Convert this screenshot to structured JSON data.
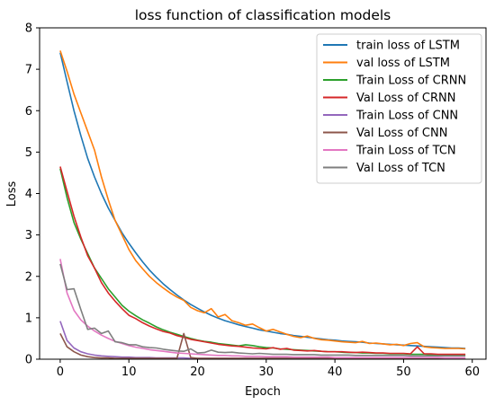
{
  "chart_data": {
    "type": "line",
    "title": "loss function of classification models",
    "xlabel": "Epoch",
    "ylabel": "Loss",
    "xlim": [
      -3.0,
      62.0
    ],
    "ylim": [
      0,
      8
    ],
    "xticks": [
      0,
      10,
      20,
      30,
      40,
      50,
      60
    ],
    "yticks": [
      0,
      1,
      2,
      3,
      4,
      5,
      6,
      7,
      8
    ],
    "grid": false,
    "legend_position": "upper right",
    "series": [
      {
        "name": "train loss of LSTM",
        "color": "#1f77b4",
        "x": [
          0,
          1,
          2,
          3,
          4,
          5,
          6,
          7,
          8,
          9,
          10,
          11,
          12,
          13,
          14,
          15,
          16,
          17,
          18,
          19,
          20,
          21,
          22,
          23,
          24,
          25,
          26,
          27,
          28,
          29,
          30,
          31,
          32,
          33,
          34,
          35,
          36,
          37,
          38,
          39,
          40,
          41,
          42,
          43,
          44,
          45,
          46,
          47,
          48,
          49,
          50,
          51,
          52,
          53,
          54,
          55,
          56,
          57,
          58,
          59
        ],
        "y": [
          7.4,
          6.7,
          6.0,
          5.4,
          4.85,
          4.4,
          4.0,
          3.65,
          3.35,
          3.05,
          2.8,
          2.57,
          2.35,
          2.15,
          1.98,
          1.82,
          1.68,
          1.55,
          1.43,
          1.32,
          1.23,
          1.14,
          1.06,
          0.99,
          0.93,
          0.88,
          0.83,
          0.79,
          0.75,
          0.71,
          0.68,
          0.65,
          0.62,
          0.6,
          0.57,
          0.55,
          0.53,
          0.51,
          0.49,
          0.47,
          0.46,
          0.44,
          0.43,
          0.42,
          0.41,
          0.39,
          0.38,
          0.37,
          0.36,
          0.35,
          0.34,
          0.33,
          0.32,
          0.31,
          0.3,
          0.29,
          0.28,
          0.27,
          0.27,
          0.26
        ]
      },
      {
        "name": "val loss of LSTM",
        "color": "#ff7f0e",
        "x": [
          0,
          1,
          2,
          3,
          4,
          5,
          6,
          7,
          8,
          9,
          10,
          11,
          12,
          13,
          14,
          15,
          16,
          17,
          18,
          19,
          20,
          21,
          22,
          23,
          24,
          25,
          26,
          27,
          28,
          29,
          30,
          31,
          32,
          33,
          34,
          35,
          36,
          37,
          38,
          39,
          40,
          41,
          42,
          43,
          44,
          45,
          46,
          47,
          48,
          49,
          50,
          51,
          52,
          53,
          54,
          55,
          56,
          57,
          58,
          59
        ],
        "y": [
          7.45,
          6.95,
          6.4,
          5.95,
          5.5,
          5.05,
          4.4,
          3.85,
          3.35,
          3.0,
          2.65,
          2.38,
          2.18,
          2.0,
          1.85,
          1.72,
          1.6,
          1.5,
          1.42,
          1.25,
          1.17,
          1.12,
          1.22,
          1.02,
          1.08,
          0.93,
          0.88,
          0.82,
          0.85,
          0.76,
          0.68,
          0.72,
          0.66,
          0.6,
          0.55,
          0.52,
          0.56,
          0.5,
          0.47,
          0.46,
          0.44,
          0.42,
          0.41,
          0.4,
          0.43,
          0.38,
          0.39,
          0.37,
          0.35,
          0.36,
          0.33,
          0.38,
          0.4,
          0.3,
          0.28,
          0.27,
          0.26,
          0.26,
          0.26,
          0.25
        ]
      },
      {
        "name": "Train Loss of CRNN",
        "color": "#2ca02c",
        "x": [
          0,
          1,
          2,
          3,
          4,
          5,
          6,
          7,
          8,
          9,
          10,
          11,
          12,
          13,
          14,
          15,
          16,
          17,
          18,
          19,
          20,
          21,
          22,
          23,
          24,
          25,
          26,
          27,
          28,
          29,
          30,
          31,
          32,
          33,
          34,
          35,
          36,
          37,
          38,
          39,
          40,
          41,
          42,
          43,
          44,
          45,
          46,
          47,
          48,
          49,
          50,
          51,
          52,
          53,
          54,
          55,
          56,
          57,
          58,
          59
        ],
        "y": [
          4.6,
          3.9,
          3.3,
          2.9,
          2.55,
          2.2,
          1.95,
          1.7,
          1.5,
          1.3,
          1.16,
          1.05,
          0.95,
          0.87,
          0.78,
          0.71,
          0.65,
          0.6,
          0.55,
          0.5,
          0.46,
          0.43,
          0.41,
          0.38,
          0.36,
          0.34,
          0.32,
          0.35,
          0.33,
          0.3,
          0.28,
          0.27,
          0.25,
          0.24,
          0.23,
          0.22,
          0.21,
          0.2,
          0.19,
          0.18,
          0.18,
          0.17,
          0.16,
          0.16,
          0.15,
          0.15,
          0.14,
          0.14,
          0.13,
          0.13,
          0.13,
          0.12,
          0.12,
          0.12,
          0.11,
          0.11,
          0.11,
          0.11,
          0.1,
          0.1
        ]
      },
      {
        "name": "Val Loss of CRNN",
        "color": "#d62728",
        "x": [
          0,
          1,
          2,
          3,
          4,
          5,
          6,
          7,
          8,
          9,
          10,
          11,
          12,
          13,
          14,
          15,
          16,
          17,
          18,
          19,
          20,
          21,
          22,
          23,
          24,
          25,
          26,
          27,
          28,
          29,
          30,
          31,
          32,
          33,
          34,
          35,
          36,
          37,
          38,
          39,
          40,
          41,
          42,
          43,
          44,
          45,
          46,
          47,
          48,
          49,
          50,
          51,
          52,
          53,
          54,
          55,
          56,
          57,
          58,
          59
        ],
        "y": [
          4.65,
          4.05,
          3.45,
          2.95,
          2.5,
          2.2,
          1.85,
          1.6,
          1.4,
          1.22,
          1.06,
          0.98,
          0.88,
          0.8,
          0.73,
          0.67,
          0.63,
          0.57,
          0.53,
          0.48,
          0.45,
          0.42,
          0.39,
          0.36,
          0.34,
          0.32,
          0.31,
          0.29,
          0.27,
          0.26,
          0.25,
          0.28,
          0.24,
          0.26,
          0.22,
          0.21,
          0.2,
          0.21,
          0.19,
          0.18,
          0.18,
          0.18,
          0.17,
          0.16,
          0.17,
          0.16,
          0.15,
          0.15,
          0.14,
          0.14,
          0.14,
          0.13,
          0.3,
          0.13,
          0.13,
          0.12,
          0.12,
          0.12,
          0.12,
          0.12
        ]
      },
      {
        "name": "Train Loss of CNN",
        "color": "#9467bd",
        "x": [
          0,
          1,
          2,
          3,
          4,
          5,
          6,
          7,
          8,
          9,
          10,
          11,
          12,
          13,
          14,
          15,
          16,
          17,
          18,
          19,
          20,
          21,
          22,
          23,
          24,
          25,
          26,
          27,
          28,
          29,
          30,
          31,
          32,
          33,
          34,
          35,
          36,
          37,
          38,
          39,
          40,
          41,
          42,
          43,
          44,
          45,
          46,
          47,
          48,
          49,
          50,
          51,
          52,
          53,
          54,
          55,
          56,
          57,
          58,
          59
        ],
        "y": [
          0.92,
          0.45,
          0.27,
          0.18,
          0.13,
          0.1,
          0.08,
          0.07,
          0.06,
          0.05,
          0.05,
          0.04,
          0.04,
          0.04,
          0.03,
          0.03,
          0.03,
          0.03,
          0.03,
          0.02,
          0.02,
          0.02,
          0.02,
          0.02,
          0.02,
          0.02,
          0.02,
          0.02,
          0.02,
          0.02,
          0.02,
          0.02,
          0.02,
          0.02,
          0.02,
          0.02,
          0.02,
          0.02,
          0.02,
          0.02,
          0.02,
          0.02,
          0.02,
          0.02,
          0.02,
          0.02,
          0.02,
          0.02,
          0.02,
          0.02,
          0.02,
          0.02,
          0.02,
          0.02,
          0.02,
          0.02,
          0.02,
          0.02,
          0.02,
          0.02
        ]
      },
      {
        "name": "Val Loss of CNN",
        "color": "#8c564b",
        "x": [
          0,
          1,
          2,
          3,
          4,
          5,
          6,
          7,
          8,
          9,
          10,
          11,
          12,
          13,
          14,
          15,
          16,
          17,
          18,
          19,
          20,
          21,
          22,
          23,
          24,
          25,
          26,
          27,
          28,
          29,
          30,
          31,
          32,
          33,
          34,
          35,
          36,
          37,
          38,
          39,
          40,
          41,
          42,
          43,
          44,
          45,
          46,
          47,
          48,
          49,
          50,
          51,
          52,
          53,
          54,
          55,
          56,
          57,
          58,
          59
        ],
        "y": [
          0.62,
          0.3,
          0.18,
          0.1,
          0.06,
          0.04,
          0.03,
          0.03,
          0.02,
          0.02,
          0.02,
          0.02,
          0.02,
          0.02,
          0.02,
          0.02,
          0.02,
          0.02,
          0.62,
          0.04,
          0.02,
          0.02,
          0.02,
          0.02,
          0.02,
          0.02,
          0.02,
          0.02,
          0.02,
          0.02,
          0.02,
          0.02,
          0.02,
          0.02,
          0.02,
          0.02,
          0.02,
          0.02,
          0.02,
          0.02,
          0.02,
          0.02,
          0.02,
          0.02,
          0.02,
          0.02,
          0.02,
          0.02,
          0.02,
          0.02,
          0.02,
          0.02,
          0.02,
          0.02,
          0.02,
          0.02,
          0.02,
          0.02,
          0.02,
          0.02
        ]
      },
      {
        "name": "Train Loss of TCN",
        "color": "#e377c2",
        "x": [
          0,
          1,
          2,
          3,
          4,
          5,
          6,
          7,
          8,
          9,
          10,
          11,
          12,
          13,
          14,
          15,
          16,
          17,
          18,
          19,
          20,
          21,
          22,
          23,
          24,
          25,
          26,
          27,
          28,
          29,
          30,
          31,
          32,
          33,
          34,
          35,
          36,
          37,
          38,
          39,
          40,
          41,
          42,
          43,
          44,
          45,
          46,
          47,
          48,
          49,
          50,
          51,
          52,
          53,
          54,
          55,
          56,
          57,
          58,
          59
        ],
        "y": [
          2.42,
          1.6,
          1.18,
          0.95,
          0.8,
          0.68,
          0.58,
          0.5,
          0.43,
          0.38,
          0.33,
          0.29,
          0.26,
          0.23,
          0.21,
          0.19,
          0.17,
          0.15,
          0.14,
          0.13,
          0.12,
          0.11,
          0.1,
          0.09,
          0.09,
          0.08,
          0.08,
          0.07,
          0.07,
          0.07,
          0.06,
          0.06,
          0.06,
          0.06,
          0.05,
          0.05,
          0.05,
          0.05,
          0.05,
          0.05,
          0.04,
          0.04,
          0.04,
          0.04,
          0.04,
          0.04,
          0.04,
          0.04,
          0.04,
          0.04,
          0.04,
          0.04,
          0.04,
          0.04,
          0.04,
          0.04,
          0.03,
          0.03,
          0.03,
          0.03
        ]
      },
      {
        "name": "Val Loss of TCN",
        "color": "#7f7f7f",
        "x": [
          0,
          1,
          2,
          3,
          4,
          5,
          6,
          7,
          8,
          9,
          10,
          11,
          12,
          13,
          14,
          15,
          16,
          17,
          18,
          19,
          20,
          21,
          22,
          23,
          24,
          25,
          26,
          27,
          28,
          29,
          30,
          31,
          32,
          33,
          34,
          35,
          36,
          37,
          38,
          39,
          40,
          41,
          42,
          43,
          44,
          45,
          46,
          47,
          48,
          49,
          50,
          51,
          52,
          53,
          54,
          55,
          56,
          57,
          58,
          59
        ],
        "y": [
          2.3,
          1.68,
          1.7,
          1.2,
          0.72,
          0.75,
          0.62,
          0.68,
          0.42,
          0.4,
          0.35,
          0.35,
          0.3,
          0.28,
          0.27,
          0.24,
          0.22,
          0.2,
          0.19,
          0.25,
          0.15,
          0.16,
          0.22,
          0.17,
          0.16,
          0.17,
          0.15,
          0.14,
          0.13,
          0.14,
          0.13,
          0.12,
          0.12,
          0.12,
          0.11,
          0.11,
          0.11,
          0.11,
          0.1,
          0.1,
          0.1,
          0.1,
          0.1,
          0.09,
          0.09,
          0.09,
          0.09,
          0.09,
          0.09,
          0.09,
          0.09,
          0.08,
          0.08,
          0.08,
          0.08,
          0.08,
          0.08,
          0.08,
          0.08,
          0.08
        ]
      }
    ]
  }
}
